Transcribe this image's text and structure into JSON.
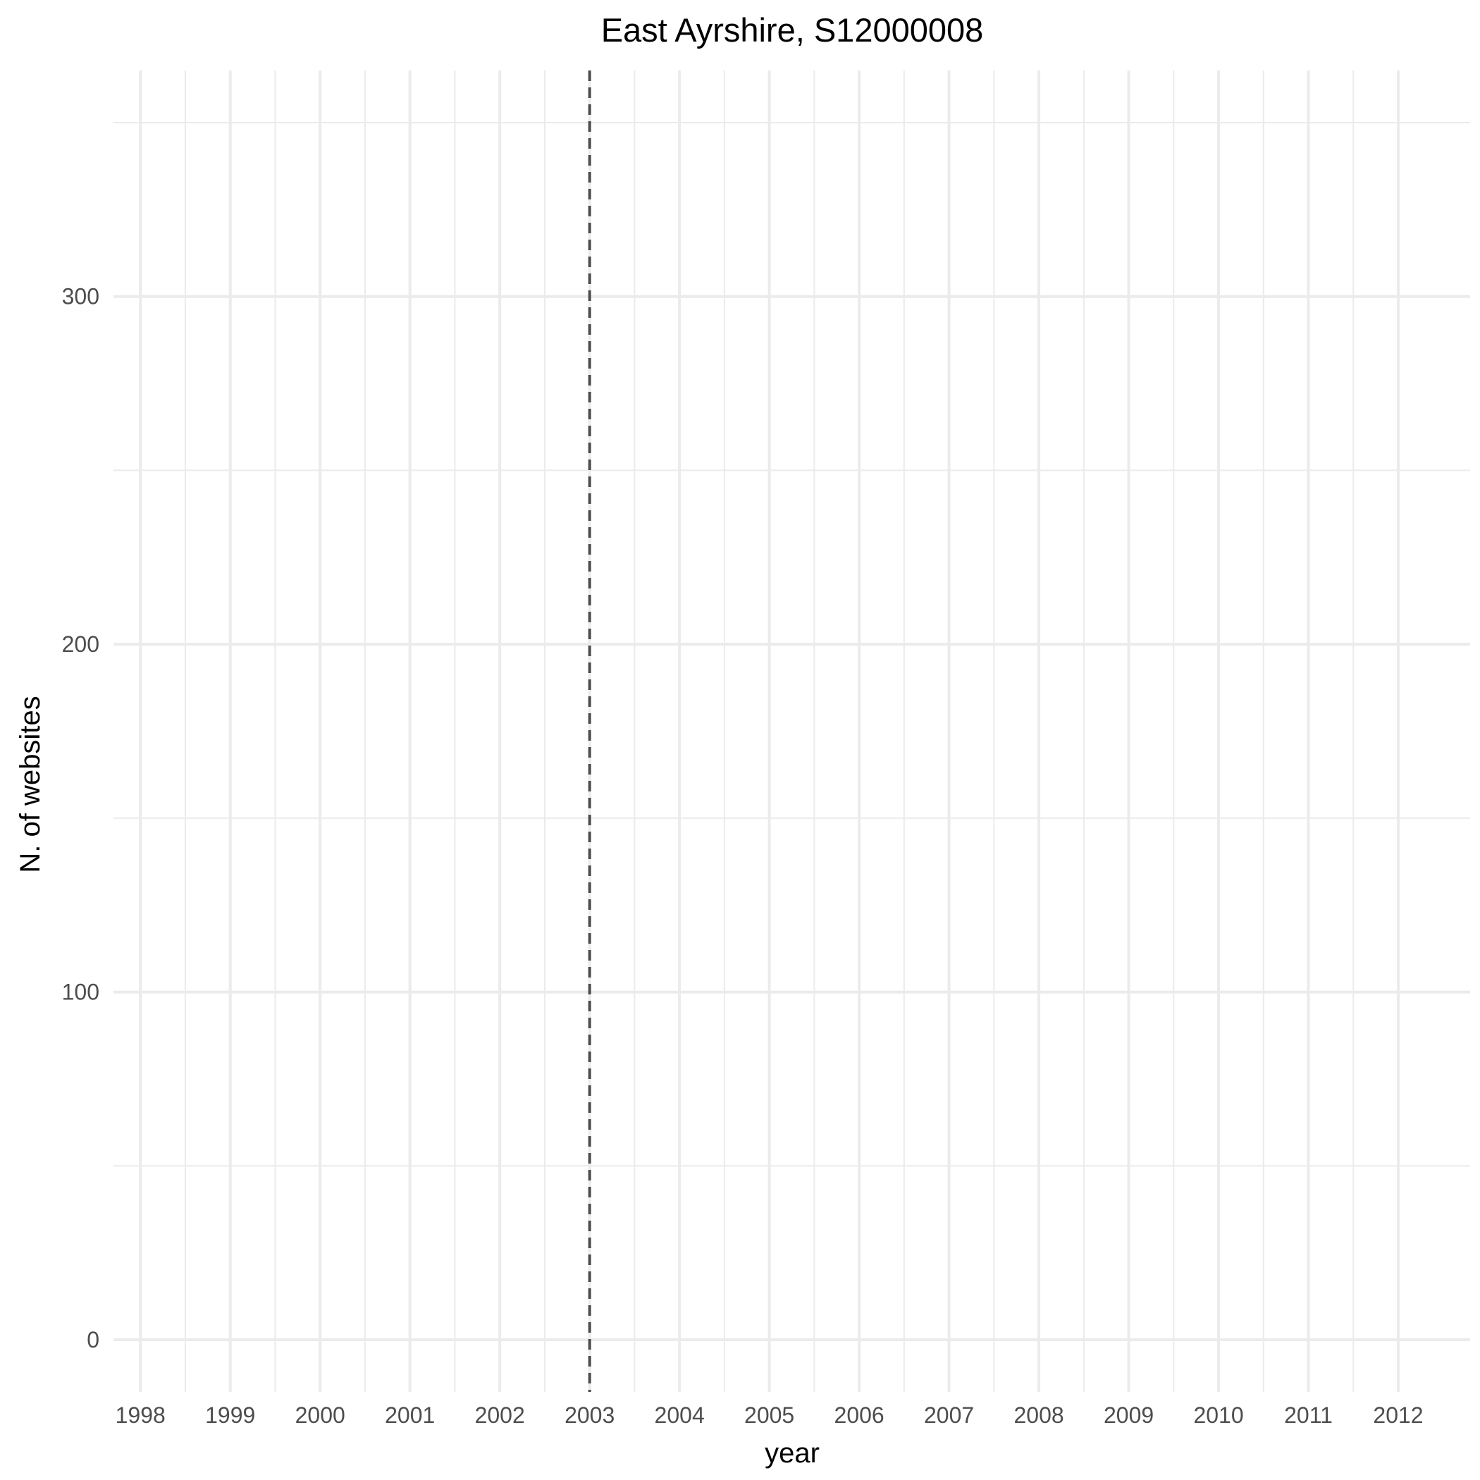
{
  "chart_data": {
    "type": "line",
    "title": "East Ayrshire, S12000008",
    "xlabel": "year",
    "ylabel": "N. of websites",
    "x_ticks": [
      "1998",
      "1999",
      "2000",
      "2001",
      "2002",
      "2003",
      "2004",
      "2005",
      "2006",
      "2007",
      "2008",
      "2009",
      "2010",
      "2011",
      "2012"
    ],
    "y_ticks": [
      "0",
      "100",
      "200",
      "300"
    ],
    "xlim": [
      1997.7,
      2012.8
    ],
    "ylim": [
      -15,
      365
    ],
    "series": [],
    "reference_line": {
      "x": 2003,
      "style": "dashed",
      "color": "#4d4d4d"
    },
    "grid": true,
    "legend": "none"
  }
}
